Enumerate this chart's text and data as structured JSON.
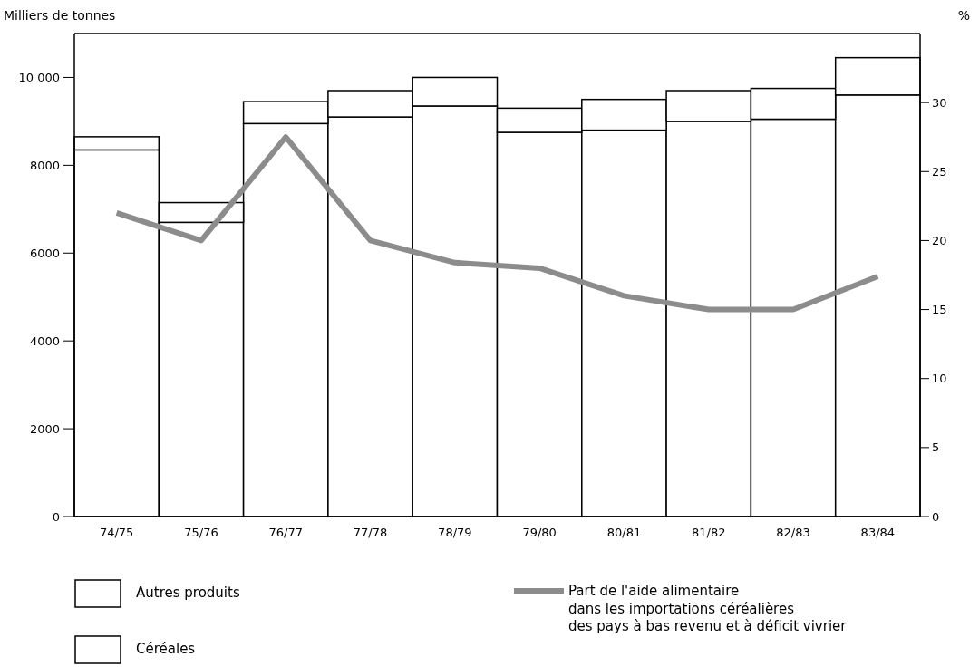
{
  "chart_data": {
    "type": "bar",
    "stacked": true,
    "ylabel": "Milliers de tonnes",
    "y2label": "%",
    "categories": [
      "74/75",
      "75/76",
      "76/77",
      "77/78",
      "78/79",
      "79/80",
      "80/81",
      "81/82",
      "82/83",
      "83/84"
    ],
    "series": [
      {
        "name": "Céréales",
        "color": "#ffffff",
        "values": [
          8350,
          6700,
          8950,
          9100,
          9350,
          8750,
          8800,
          9000,
          9050,
          9600
        ]
      },
      {
        "name": "Autres produits",
        "color": "#ffffff",
        "values": [
          300,
          450,
          500,
          600,
          650,
          550,
          700,
          700,
          700,
          850
        ]
      },
      {
        "name": "Part de l'aide alimentaire\ndans les importations céréalières\ndes pays à bas revenu et à déficit vivrier",
        "type": "line",
        "axis": "y2",
        "color": "#8c8c8c",
        "values": [
          22,
          20,
          27.5,
          20,
          18.4,
          18,
          16,
          15,
          15,
          17.4
        ]
      }
    ],
    "ylim": [
      0,
      11000
    ],
    "yticks": [
      0,
      2000,
      4000,
      6000,
      8000,
      {
        "value": 10000,
        "label": "10 000"
      }
    ],
    "y2lim": [
      0,
      35
    ],
    "y2ticks": [
      0,
      5,
      10,
      15,
      20,
      25,
      30
    ],
    "legend": "bottom",
    "line_style": "solid"
  }
}
